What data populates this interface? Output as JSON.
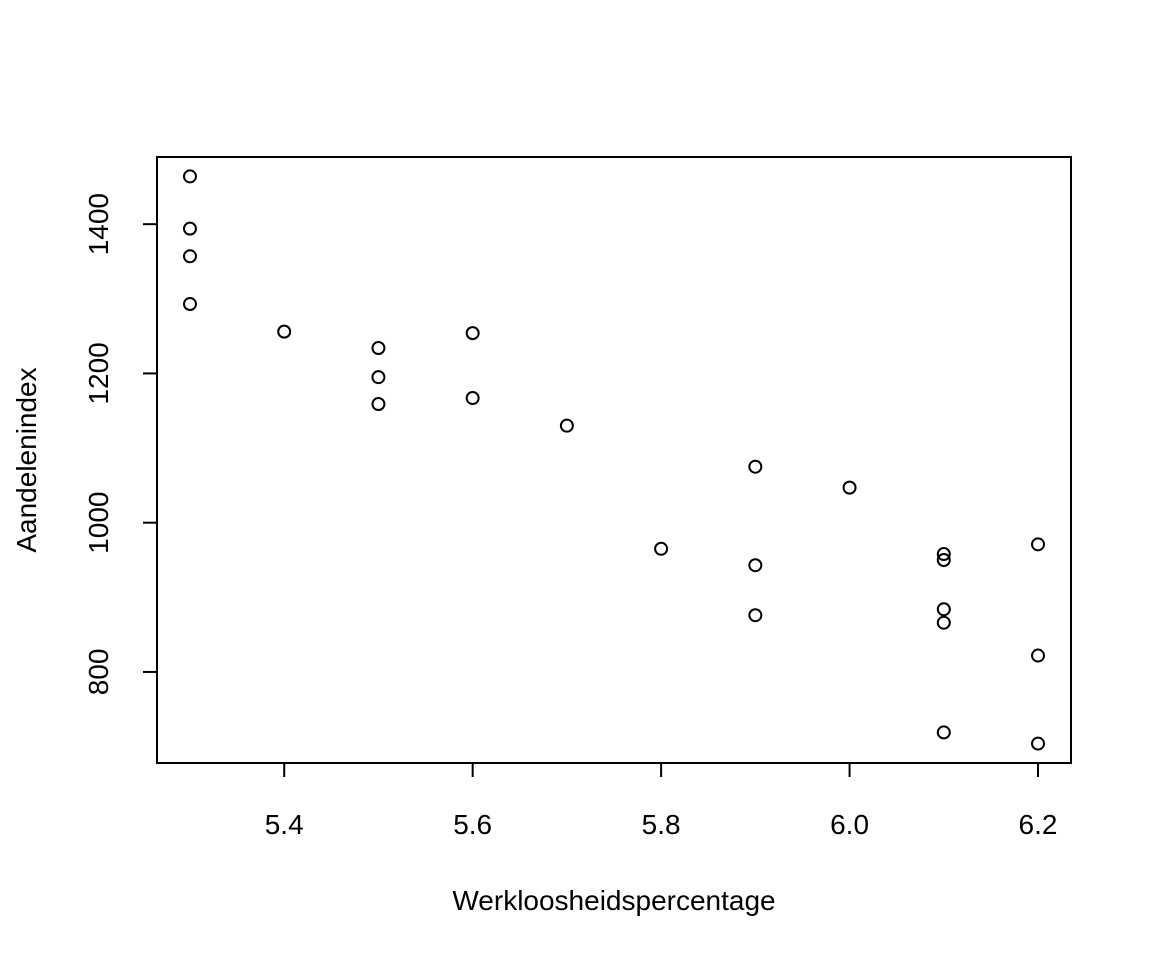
{
  "chart_data": {
    "type": "scatter",
    "title": "",
    "xlabel": "Werkloosheidspercentage",
    "ylabel": "Aandelenindex",
    "xlim": [
      5.265,
      6.235
    ],
    "ylim": [
      678,
      1490
    ],
    "xticks": [
      {
        "value": 5.4,
        "label": "5.4"
      },
      {
        "value": 5.6,
        "label": "5.6"
      },
      {
        "value": 5.8,
        "label": "5.8"
      },
      {
        "value": 6.0,
        "label": "6.0"
      },
      {
        "value": 6.2,
        "label": "6.2"
      }
    ],
    "yticks": [
      {
        "value": 800,
        "label": "800"
      },
      {
        "value": 1000,
        "label": "1000"
      },
      {
        "value": 1200,
        "label": "1200"
      },
      {
        "value": 1400,
        "label": "1400"
      }
    ],
    "grid": false,
    "points": [
      {
        "x": 5.3,
        "y": 1464
      },
      {
        "x": 5.3,
        "y": 1394
      },
      {
        "x": 5.3,
        "y": 1357
      },
      {
        "x": 5.3,
        "y": 1293
      },
      {
        "x": 5.4,
        "y": 1256
      },
      {
        "x": 5.5,
        "y": 1234
      },
      {
        "x": 5.5,
        "y": 1195
      },
      {
        "x": 5.5,
        "y": 1159
      },
      {
        "x": 5.6,
        "y": 1254
      },
      {
        "x": 5.6,
        "y": 1167
      },
      {
        "x": 5.7,
        "y": 1130
      },
      {
        "x": 5.9,
        "y": 1075
      },
      {
        "x": 6.0,
        "y": 1047
      },
      {
        "x": 5.8,
        "y": 965
      },
      {
        "x": 5.9,
        "y": 943
      },
      {
        "x": 5.9,
        "y": 876
      },
      {
        "x": 6.1,
        "y": 958
      },
      {
        "x": 6.1,
        "y": 950
      },
      {
        "x": 6.1,
        "y": 884
      },
      {
        "x": 6.1,
        "y": 866
      },
      {
        "x": 6.1,
        "y": 719
      },
      {
        "x": 6.2,
        "y": 971
      },
      {
        "x": 6.2,
        "y": 822
      },
      {
        "x": 6.2,
        "y": 704
      }
    ]
  }
}
